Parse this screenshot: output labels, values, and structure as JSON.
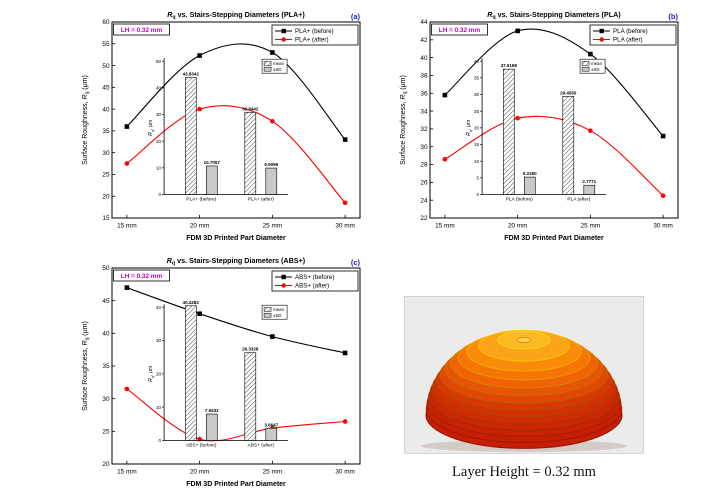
{
  "figure": {
    "lh_annotation": "LH = 0.32 mm",
    "colors": {
      "before_series": "#000000",
      "after_series": "#ff0000",
      "lh_text": "#c400c4",
      "panel_letter": "#2222cc",
      "sd_bar_fill": "#c9c9c9"
    }
  },
  "chart_data": [
    {
      "panel": "(a)",
      "type": "line",
      "title": {
        "pre": "",
        "it": "R",
        "sub": "q",
        "post": " vs. Stairs-Stepping Diameters (PLA+)"
      },
      "xlabel": "FDM 3D Printed Part Diameter",
      "ylabel": {
        "pre": "Surface Roughness, ",
        "it": "R",
        "sub": "q",
        "post": " (μm)"
      },
      "annotation": "LH = 0.32 mm",
      "x": [
        15,
        20,
        25,
        30
      ],
      "x_tick_labels": [
        "15 mm",
        "20 mm",
        "25 mm",
        "30 mm"
      ],
      "ylim": [
        15,
        60
      ],
      "ytick_step": 5,
      "series": [
        {
          "name": "PLA+ (before)",
          "color": "#000000",
          "marker": "square",
          "values": [
            36,
            52.3,
            53,
            33
          ]
        },
        {
          "name": "PLA+ (after)",
          "color": "#ff0000",
          "marker": "circle",
          "values": [
            27.5,
            40,
            37.2,
            18.5
          ]
        }
      ],
      "inset": {
        "ylabel": {
          "pre": "",
          "it": "R",
          "sub": "q",
          "post": ", μm"
        },
        "ylim": [
          0,
          50
        ],
        "ytick_step": 10,
        "categories": [
          "PLA+ (before)",
          "PLA+ (after)"
        ],
        "legend": [
          "mean",
          "±SD"
        ],
        "groups": [
          {
            "mean": 43.8342,
            "sd": 10.7057
          },
          {
            "mean": 30.8442,
            "sd": 9.9096
          }
        ]
      }
    },
    {
      "panel": "(b)",
      "type": "line",
      "title": {
        "pre": "",
        "it": "R",
        "sub": "q",
        "post": " vs. Stairs-Stepping Diameters (PLA)"
      },
      "xlabel": "FDM 3D Printed Part Diameter",
      "ylabel": {
        "pre": "Surface Roughness, ",
        "it": "R",
        "sub": "q",
        "post": " (μm)"
      },
      "annotation": "LH = 0.32 mm",
      "x": [
        15,
        20,
        25,
        30
      ],
      "x_tick_labels": [
        "15 mm",
        "20 mm",
        "25 mm",
        "30 mm"
      ],
      "ylim": [
        22,
        44
      ],
      "ytick_step": 2,
      "series": [
        {
          "name": "PLA (before)",
          "color": "#000000",
          "marker": "square",
          "values": [
            35.8,
            43,
            40.4,
            31.2
          ]
        },
        {
          "name": "PLA (after)",
          "color": "#ff0000",
          "marker": "circle",
          "values": [
            28.6,
            33.2,
            31.8,
            24.5
          ]
        }
      ],
      "inset": {
        "ylabel": {
          "pre": "",
          "it": "R",
          "sub": "q",
          "post": ", μm"
        },
        "ylim": [
          0,
          40
        ],
        "ytick_step": 5,
        "categories": [
          "PLA (before)",
          "PLA (after)"
        ],
        "legend": [
          "mean",
          "±SD"
        ],
        "groups": [
          {
            "mean": 37.6168,
            "sd": 5.226
          },
          {
            "mean": 29.455,
            "sd": 2.7771
          }
        ]
      }
    },
    {
      "panel": "(c)",
      "type": "line",
      "title": {
        "pre": "",
        "it": "R",
        "sub": "q",
        "post": " vs. Stairs-Stepping Diameters (ABS+)"
      },
      "xlabel": "FDM 3D Printed Part Diameter",
      "ylabel": {
        "pre": "Surface Roughness, ",
        "it": "R",
        "sub": "q",
        "post": " (μm)"
      },
      "annotation": "LH = 0.32 mm",
      "x": [
        15,
        20,
        25,
        30
      ],
      "x_tick_labels": [
        "15 mm",
        "20 mm",
        "25 mm",
        "30 mm"
      ],
      "ylim": [
        20,
        50
      ],
      "ytick_step": 5,
      "series": [
        {
          "name": "ABS+ (before)",
          "color": "#000000",
          "marker": "square",
          "values": [
            47,
            43,
            39.5,
            37
          ]
        },
        {
          "name": "ABS+ (after)",
          "color": "#ff0000",
          "marker": "circle",
          "values": [
            31.5,
            23.8,
            25.5,
            26.5
          ]
        }
      ],
      "inset": {
        "ylabel": {
          "pre": "",
          "it": "R",
          "sub": "q",
          "post": ", μm"
        },
        "ylim": [
          0,
          40
        ],
        "ytick_step": 10,
        "categories": [
          "ABS+ (before)",
          "ABS+ (after)"
        ],
        "legend": [
          "mean",
          "±SD"
        ],
        "groups": [
          {
            "mean": 40.4282,
            "sd": 7.9432
          },
          {
            "mean": 26.3328,
            "sd": 3.6647
          }
        ]
      }
    }
  ],
  "image_panel": {
    "caption": "Layer Height = 0.32 mm"
  }
}
